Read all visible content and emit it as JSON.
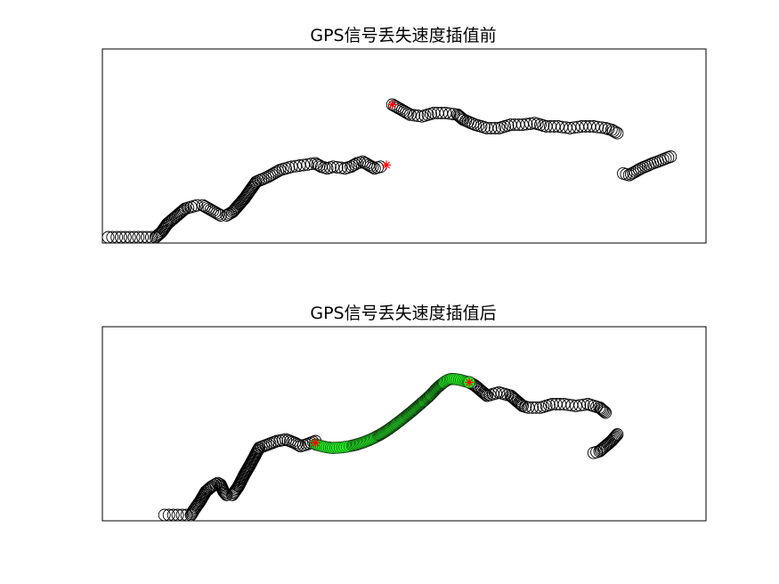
{
  "chart_data": [
    {
      "type": "scatter",
      "title": "GPS信号丢失速度插值前",
      "xlabel": "",
      "ylabel": "",
      "xlim": [
        0,
        100
      ],
      "ylim": [
        0,
        100
      ],
      "grid": false,
      "series": [
        {
          "marker": "circle",
          "color": "#000000",
          "trace": [
            [
              0,
              0
            ],
            [
              8,
              0
            ],
            [
              9,
              3
            ],
            [
              10,
              8
            ],
            [
              12,
              14
            ],
            [
              13,
              17
            ],
            [
              14,
              18
            ],
            [
              15,
              19
            ],
            [
              16,
              19
            ],
            [
              17,
              17
            ],
            [
              18,
              15
            ],
            [
              19,
              13
            ],
            [
              20,
              13
            ],
            [
              21,
              15
            ],
            [
              22,
              19
            ],
            [
              23,
              23
            ],
            [
              24,
              28
            ],
            [
              25,
              33
            ],
            [
              27,
              36
            ],
            [
              29,
              40
            ],
            [
              31,
              42
            ],
            [
              33,
              43
            ],
            [
              35,
              44
            ],
            [
              36,
              42
            ],
            [
              37,
              41
            ],
            [
              38,
              42
            ],
            [
              40,
              41
            ],
            [
              41,
              42
            ],
            [
              42,
              44
            ],
            [
              43,
              45
            ],
            [
              44,
              43
            ],
            [
              45,
              41
            ],
            [
              46,
              42
            ]
          ],
          "spacing": 0.7
        },
        {
          "marker": "circle",
          "color": "#000000",
          "trace": [
            [
              48,
              79
            ],
            [
              49,
              77
            ],
            [
              50,
              75
            ],
            [
              51,
              73
            ],
            [
              53,
              72
            ],
            [
              55,
              74
            ],
            [
              57,
              74
            ],
            [
              59,
              73
            ],
            [
              60,
              70
            ],
            [
              62,
              67
            ],
            [
              64,
              65
            ],
            [
              66,
              65
            ],
            [
              68,
              67
            ],
            [
              70,
              67
            ],
            [
              72,
              68
            ],
            [
              74,
              66
            ],
            [
              76,
              66
            ],
            [
              78,
              65
            ],
            [
              80,
              66
            ],
            [
              82,
              66
            ],
            [
              84,
              65
            ],
            [
              85,
              64
            ],
            [
              86,
              62
            ]
          ],
          "spacing": 0.7
        },
        {
          "marker": "circle",
          "color": "#000000",
          "trace": [
            [
              87,
              38
            ],
            [
              88,
              37
            ],
            [
              90,
              41
            ],
            [
              92,
              44
            ],
            [
              95,
              48
            ]
          ],
          "spacing": 0.7
        }
      ],
      "markers": [
        {
          "marker": "star",
          "color": "#ff0000",
          "x": 48,
          "y": 79
        },
        {
          "marker": "star",
          "color": "#ff0000",
          "x": 47,
          "y": 43
        }
      ]
    },
    {
      "type": "scatter",
      "title": "GPS信号丢失速度插值后",
      "xlabel": "",
      "ylabel": "",
      "xlim": [
        0,
        100
      ],
      "ylim": [
        0,
        100
      ],
      "grid": false,
      "series": [
        {
          "marker": "circle",
          "color": "#000000",
          "trace": [
            [
              9.5,
              0
            ],
            [
              14,
              0
            ],
            [
              14.5,
              3
            ],
            [
              15.5,
              8
            ],
            [
              16.5,
              14
            ],
            [
              17.5,
              17
            ],
            [
              18.5,
              19
            ],
            [
              19,
              18
            ],
            [
              19.5,
              14
            ],
            [
              20,
              12
            ],
            [
              21,
              12
            ],
            [
              22,
              17
            ],
            [
              23,
              24
            ],
            [
              24,
              30
            ],
            [
              25.5,
              40
            ],
            [
              27,
              42
            ],
            [
              28.5,
              44
            ],
            [
              30,
              45
            ],
            [
              31.5,
              43
            ],
            [
              32.5,
              41
            ],
            [
              33.5,
              42
            ],
            [
              35,
              44
            ]
          ],
          "spacing": 0.7
        },
        {
          "marker": "circle",
          "color": "#000000",
          "trace": [
            [
              61,
              79
            ],
            [
              62,
              77
            ],
            [
              63,
              74
            ],
            [
              64,
              71
            ],
            [
              66,
              73
            ],
            [
              68,
              71
            ],
            [
              69,
              68
            ],
            [
              70,
              65
            ],
            [
              71,
              64
            ],
            [
              73,
              64
            ],
            [
              75,
              66
            ],
            [
              77,
              66
            ],
            [
              79,
              65
            ],
            [
              81,
              66
            ],
            [
              83,
              64
            ],
            [
              84,
              61
            ]
          ],
          "spacing": 0.7
        },
        {
          "marker": "circle",
          "color": "#000000",
          "trace": [
            [
              82,
              37
            ],
            [
              83,
              38
            ],
            [
              84,
              41
            ],
            [
              85,
              44
            ],
            [
              86,
              48
            ]
          ],
          "spacing": 0.7
        },
        {
          "name": "",
          "marker": "circle-filled",
          "color": "#22ee22",
          "trace": [
            [
              35,
              42
            ],
            [
              38,
              40
            ],
            [
              42,
              42
            ],
            [
              46,
              48
            ],
            [
              50,
              58
            ],
            [
              54,
              70
            ],
            [
              56,
              77
            ],
            [
              58,
              81
            ],
            [
              61,
              79
            ]
          ],
          "spacing": 0.35,
          "smooth": true
        }
      ],
      "markers": [
        {
          "marker": "star",
          "color": "#ff0000",
          "x": 35,
          "y": 43
        },
        {
          "marker": "star",
          "color": "#ff0000",
          "x": 61,
          "y": 79
        }
      ]
    }
  ]
}
